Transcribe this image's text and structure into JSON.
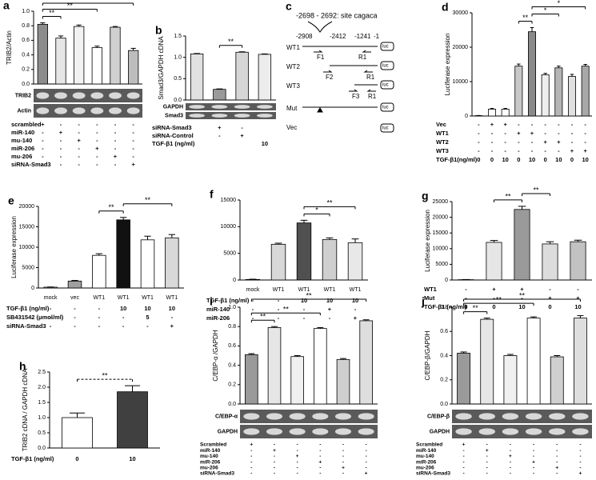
{
  "chart_data": [
    {
      "type": "bar",
      "panel": "a",
      "ylabel": "TRIB2/Actin",
      "values": [
        0.82,
        0.63,
        0.79,
        0.5,
        0.78,
        0.46
      ],
      "errors": [
        0.02,
        0.03,
        0.02,
        0.02,
        0.01,
        0.03
      ],
      "colors": [
        "#8c8c8c",
        "#e6e6e6",
        "#f2f2f2",
        "#ffffff",
        "#d0d0d0",
        "#bdbdbd"
      ],
      "ylim": [
        0,
        1
      ],
      "yticks": [
        {
          "value": 0,
          "label": "0.0"
        },
        0.2,
        0.4,
        0.6,
        0.8,
        {
          "value": 1,
          "label": "1.0"
        }
      ],
      "significance": [
        "**",
        "**",
        "**"
      ],
      "blots": [
        "TRIB2",
        "Actin"
      ],
      "conditions": [
        {
          "label": "scrambled",
          "marks": [
            "+",
            "-",
            "-",
            "-",
            "-",
            "-"
          ]
        },
        {
          "label": "miR-140",
          "marks": [
            "-",
            "+",
            "-",
            "-",
            "-",
            "-"
          ]
        },
        {
          "label": "mu-140",
          "marks": [
            "-",
            "-",
            "+",
            "-",
            "-",
            "-"
          ]
        },
        {
          "label": "miR-206",
          "marks": [
            "-",
            "-",
            "-",
            "+",
            "-",
            "-"
          ]
        },
        {
          "label": "mu-206",
          "marks": [
            "-",
            "-",
            "-",
            "-",
            "+",
            "-"
          ]
        },
        {
          "label": "siRNA-Smad3",
          "marks": [
            "-",
            "-",
            "-",
            "-",
            "-",
            "+"
          ]
        }
      ]
    },
    {
      "type": "bar",
      "panel": "b",
      "ylabel": "Smad3/GAPDH cDNA",
      "values": [
        1.08,
        0.25,
        1.12,
        1.07
      ],
      "errors": [
        0.01,
        0.01,
        0.01,
        0.01
      ],
      "colors": [
        "#e0e0e0",
        "#9a9a9a",
        "#d6d6d6",
        "#ececec"
      ],
      "ylim": [
        0,
        1.5
      ],
      "yticks": [
        {
          "value": 0,
          "label": "0.0"
        },
        0.5,
        {
          "value": 1,
          "label": "1.0"
        },
        1.5
      ],
      "significance": [
        "**"
      ],
      "blots": [
        "GAPDH",
        "Smad3"
      ],
      "conditions": [
        {
          "label": "siRNA-Smad3",
          "marks": [
            null,
            "+",
            "-",
            null
          ]
        },
        {
          "label": "siRNA-Control",
          "marks": [
            null,
            "-",
            "+",
            null
          ]
        },
        {
          "label": "TGF-β1 (ng/ml)",
          "marks": [
            null,
            null,
            null,
            "10"
          ]
        }
      ]
    },
    {
      "type": "bar",
      "panel": "d",
      "ylabel": "Luciferase expression",
      "values": [
        100,
        2000,
        2000,
        14500,
        24500,
        12000,
        14000,
        11500,
        14500
      ],
      "errors": [
        50,
        200,
        200,
        600,
        1200,
        400,
        500,
        600,
        500
      ],
      "colors": [
        "#ffffff",
        "#ffffff",
        "#ffffff",
        "#c8c8c8",
        "#8a8a8a",
        "#eeeeee",
        "#b5b5b5",
        "#e0e0e0",
        "#a8a8a8"
      ],
      "ylim": [
        0,
        30000
      ],
      "yticks": [
        0,
        10000,
        20000,
        30000
      ],
      "significance": [
        "**",
        "*",
        "*"
      ],
      "conditions": [
        {
          "label": "Vec",
          "marks": [
            "-",
            "+",
            "+",
            "-",
            "-",
            "-",
            "-",
            "-",
            "-"
          ]
        },
        {
          "label": "WT1",
          "marks": [
            "-",
            "-",
            "-",
            "+",
            "+",
            "-",
            "-",
            "-",
            "-"
          ]
        },
        {
          "label": "WT2",
          "marks": [
            "-",
            "-",
            "-",
            "-",
            "-",
            "+",
            "+",
            "-",
            "-"
          ]
        },
        {
          "label": "WT3",
          "marks": [
            "-",
            "-",
            "-",
            "-",
            "-",
            "-",
            "-",
            "+",
            "+"
          ]
        },
        {
          "label": "TGF-β1(ng/ml)",
          "marks": [
            "0",
            "0",
            "10",
            "0",
            "10",
            "0",
            "10",
            "0",
            "10"
          ]
        }
      ]
    },
    {
      "type": "bar",
      "panel": "e",
      "ylabel": "Luciferase expression",
      "categories": [
        "mock",
        "vec",
        "WT1",
        "WT1",
        "WT1",
        "WT1"
      ],
      "values": [
        200,
        1700,
        8000,
        16700,
        11800,
        12300
      ],
      "errors": [
        50,
        150,
        400,
        600,
        900,
        800
      ],
      "colors": [
        "#ffffff",
        "#a0a0a0",
        "#ffffff",
        "#111111",
        "#ffffff",
        "#d8d8d8"
      ],
      "ylim": [
        0,
        20000
      ],
      "yticks": [
        0,
        5000,
        10000,
        15000,
        20000
      ],
      "significance": [
        "**",
        "**"
      ],
      "conditions": [
        {
          "label": "TGF-β1 (ng/ml)",
          "marks": [
            "-",
            "-",
            "-",
            "10",
            "10",
            "10"
          ]
        },
        {
          "label": "SB431542 (μmol/ml)",
          "marks": [
            "-",
            "-",
            "-",
            "-",
            "5",
            "-"
          ]
        },
        {
          "label": "siRNA-Smad3",
          "marks": [
            "-",
            "-",
            "-",
            "-",
            "-",
            "+"
          ]
        }
      ]
    },
    {
      "type": "bar",
      "panel": "f",
      "categories": [
        "mock",
        "WT1",
        "WT1",
        "WT1",
        "WT1"
      ],
      "values": [
        100,
        6700,
        10700,
        7600,
        7000
      ],
      "errors": [
        50,
        200,
        500,
        300,
        700
      ],
      "colors": [
        "#ffffff",
        "#d8d8d8",
        "#505050",
        "#cfcfcf",
        "#e8e8e8"
      ],
      "ylim": [
        0,
        15000
      ],
      "yticks": [
        0,
        5000,
        10000,
        15000
      ],
      "significance": [
        "*",
        "**"
      ],
      "conditions": [
        {
          "label": "TGF-β1 (ng/ml)",
          "marks": [
            "-",
            "-",
            "10",
            "10",
            "10"
          ]
        },
        {
          "label": "miR-140",
          "marks": [
            "-",
            "-",
            "-",
            "+",
            "-"
          ]
        },
        {
          "label": "miR-206",
          "marks": [
            "-",
            "-",
            "-",
            "-",
            "+"
          ]
        }
      ]
    },
    {
      "type": "bar",
      "panel": "g",
      "ylabel": "Luciferase expression",
      "values": [
        100,
        12000,
        22500,
        11500,
        12200
      ],
      "errors": [
        50,
        600,
        1000,
        700,
        500
      ],
      "colors": [
        "#ffffff",
        "#e6e6e6",
        "#9a9a9a",
        "#dcdcdc",
        "#c2c2c2"
      ],
      "ylim": [
        0,
        25000
      ],
      "yticks": [
        0,
        5000,
        10000,
        15000,
        20000,
        25000
      ],
      "significance": [
        "**",
        "**"
      ],
      "conditions": [
        {
          "label": "WT1",
          "marks": [
            "-",
            "+",
            "+",
            "-",
            "-"
          ]
        },
        {
          "label": "Mut",
          "marks": [
            "-",
            "-",
            "-",
            "+",
            "+"
          ]
        },
        {
          "label": "TGF-β1 (ng/ml)",
          "marks": [
            "0",
            "0",
            "10",
            "0",
            "10"
          ]
        }
      ]
    },
    {
      "type": "bar",
      "panel": "h",
      "ylabel": "TRIB2 cDNA / GAPDH cDNA",
      "values": [
        1.0,
        1.85
      ],
      "errors": [
        0.15,
        0.2
      ],
      "colors": [
        "#ffffff",
        "#404040"
      ],
      "ylim": [
        0,
        2.5
      ],
      "yticks": [
        {
          "value": 0,
          "label": "0.0"
        },
        0.5,
        {
          "value": 1,
          "label": "1.0"
        },
        1.5,
        {
          "value": 2,
          "label": "2.0"
        },
        2.5
      ],
      "significance": [
        "**"
      ],
      "conditions": [
        {
          "label": "TGF-β1 (ng/ml)",
          "marks": [
            "0",
            "10"
          ]
        }
      ]
    },
    {
      "type": "bar",
      "panel": "i",
      "ylabel": "C/EBP-α /GAPDH",
      "values": [
        0.51,
        0.79,
        0.49,
        0.78,
        0.46,
        0.86
      ],
      "errors": [
        0.01,
        0.01,
        0.01,
        0.01,
        0.01,
        0.01
      ],
      "colors": [
        "#9a9a9a",
        "#e6e6e6",
        "#f0f0f0",
        "#ffffff",
        "#cfcfcf",
        "#dedede"
      ],
      "ylim": [
        0,
        1
      ],
      "yticks": [
        {
          "value": 0,
          "label": "0.0"
        },
        0.2,
        0.4,
        0.6,
        0.8,
        {
          "value": 1,
          "label": "1.0"
        }
      ],
      "significance": [
        "**",
        "**",
        "**"
      ],
      "blots": [
        "C/EBP-α",
        "GAPDH"
      ],
      "conditions": [
        {
          "label": "Scrambled",
          "marks": [
            "+",
            "-",
            "-",
            "-",
            "-",
            "-"
          ]
        },
        {
          "label": "miR-140",
          "marks": [
            "-",
            "+",
            "-",
            "-",
            "-",
            "-"
          ]
        },
        {
          "label": "mu-140",
          "marks": [
            "-",
            "-",
            "+",
            "-",
            "-",
            "-"
          ]
        },
        {
          "label": "miR-206",
          "marks": [
            "-",
            "-",
            "-",
            "+",
            "-",
            "-"
          ]
        },
        {
          "label": "mu-206",
          "marks": [
            "-",
            "-",
            "-",
            "-",
            "+",
            "-"
          ]
        },
        {
          "label": "siRNA-Smad3",
          "marks": [
            "-",
            "-",
            "-",
            "-",
            "-",
            "+"
          ]
        }
      ]
    },
    {
      "type": "bar",
      "panel": "j",
      "ylabel": "C/EBP-β/GAPDH",
      "values": [
        0.42,
        0.7,
        0.4,
        0.71,
        0.39,
        0.71
      ],
      "errors": [
        0.01,
        0.01,
        0.01,
        0.01,
        0.01,
        0.02
      ],
      "colors": [
        "#9a9a9a",
        "#e6e6e6",
        "#f0f0f0",
        "#ffffff",
        "#cfcfcf",
        "#dedede"
      ],
      "ylim": [
        0,
        0.8
      ],
      "yticks": [
        {
          "value": 0,
          "label": "0.0"
        },
        0.2,
        0.4,
        0.6,
        0.8
      ],
      "significance": [
        "**",
        "**",
        "**"
      ],
      "blots": [
        "C/EBP-β",
        "GAPDH"
      ],
      "conditions": [
        {
          "label": "Scrambled",
          "marks": [
            "+",
            "-",
            "-",
            "-",
            "-",
            "-"
          ]
        },
        {
          "label": "miR-140",
          "marks": [
            "-",
            "+",
            "-",
            "-",
            "-",
            "-"
          ]
        },
        {
          "label": "mu-140",
          "marks": [
            "-",
            "-",
            "+",
            "-",
            "-",
            "-"
          ]
        },
        {
          "label": "miR-206",
          "marks": [
            "-",
            "-",
            "-",
            "+",
            "-",
            "-"
          ]
        },
        {
          "label": "mu-206",
          "marks": [
            "-",
            "-",
            "-",
            "-",
            "+",
            "-"
          ]
        },
        {
          "label": "siRNA-Smad3",
          "marks": [
            "-",
            "-",
            "-",
            "-",
            "-",
            "+"
          ]
        }
      ]
    }
  ],
  "diagram": {
    "panel": "c",
    "site": "-2698 - 2692: site cagaca",
    "positions": [
      "-2908",
      "-2412",
      "-1241",
      "-1"
    ],
    "constructs": [
      {
        "label": "WT1",
        "primers": [
          "F1",
          "R1"
        ]
      },
      {
        "label": "WT2",
        "primers": [
          "F2",
          "R1"
        ]
      },
      {
        "label": "WT3",
        "primers": [
          "F3",
          "R1"
        ]
      },
      {
        "label": "Mut"
      },
      {
        "label": "Vec"
      }
    ],
    "reporter": "luc"
  }
}
